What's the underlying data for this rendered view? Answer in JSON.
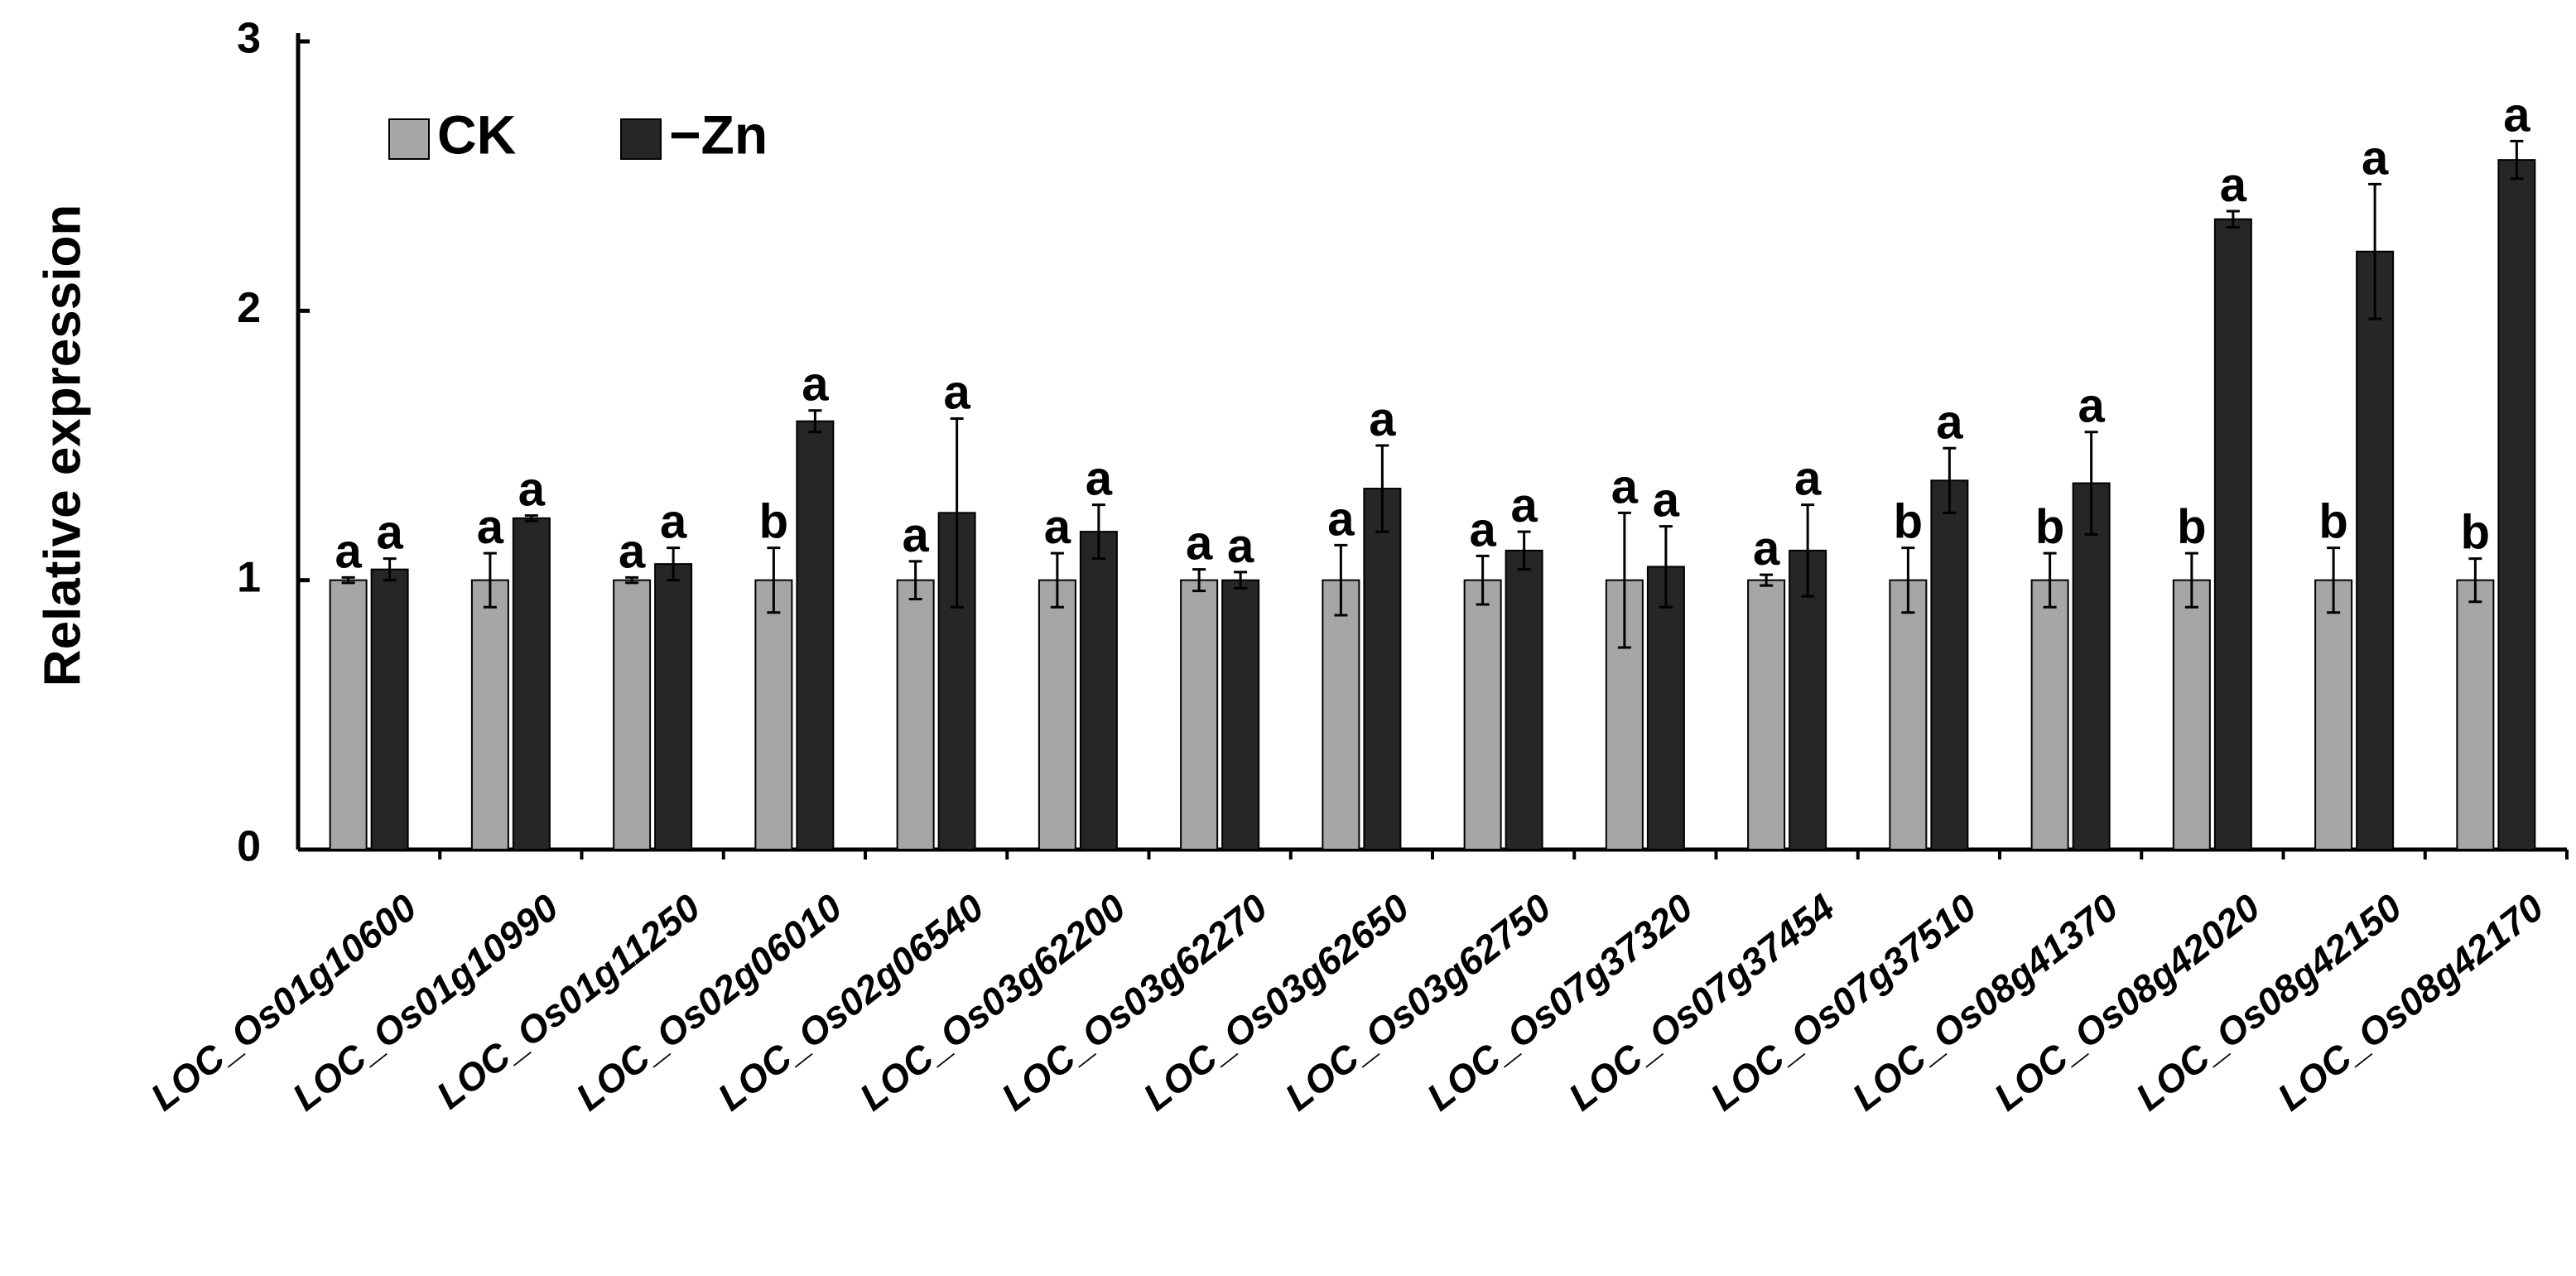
{
  "chart_data": {
    "type": "bar",
    "y_label": "Relative expression",
    "categories": [
      "LOC_Os01g10600",
      "LOC_Os01g10990",
      "LOC_Os01g11250",
      "LOC_Os02g06010",
      "LOC_Os02g06540",
      "LOC_Os03g62200",
      "LOC_Os03g62270",
      "LOC_Os03g62650",
      "LOC_Os03g62750",
      "LOC_Os07g37320",
      "LOC_Os07g37454",
      "LOC_Os07g37510",
      "LOC_Os08g41370",
      "LOC_Os08g42020",
      "LOC_Os08g42150",
      "LOC_Os08g42170"
    ],
    "series": [
      {
        "name": "CK",
        "color": "#a6a6a6",
        "values": [
          1,
          1,
          1,
          1,
          1,
          1,
          1,
          1,
          1,
          1,
          1,
          1,
          1,
          1,
          1,
          1
        ],
        "errors": [
          0.01,
          0.1,
          0.01,
          0.12,
          0.07,
          0.1,
          0.04,
          0.13,
          0.09,
          0.25,
          0.02,
          0.12,
          0.1,
          0.1,
          0.12,
          0.08
        ],
        "letters": [
          "a",
          "a",
          "a",
          "b",
          "a",
          "a",
          "a",
          "a",
          "a",
          "a",
          "a",
          "b",
          "b",
          "b",
          "b",
          "b"
        ]
      },
      {
        "name": "−Zn",
        "color": "#262626",
        "values": [
          1.04,
          1.23,
          1.06,
          1.59,
          1.25,
          1.18,
          1.0,
          1.34,
          1.11,
          1.05,
          1.11,
          1.37,
          1.36,
          2.34,
          2.22,
          2.56
        ],
        "errors": [
          0.04,
          0.01,
          0.06,
          0.04,
          0.35,
          0.1,
          0.03,
          0.16,
          0.07,
          0.15,
          0.17,
          0.12,
          0.19,
          0.03,
          0.25,
          0.07
        ],
        "letters": [
          "a",
          "a",
          "a",
          "a",
          "a",
          "a",
          "a",
          "a",
          "a",
          "a",
          "a",
          "a",
          "a",
          "a",
          "a",
          "a"
        ]
      }
    ],
    "ylim": [
      0,
      3
    ],
    "yticks": [
      0,
      1,
      2,
      3
    ]
  }
}
